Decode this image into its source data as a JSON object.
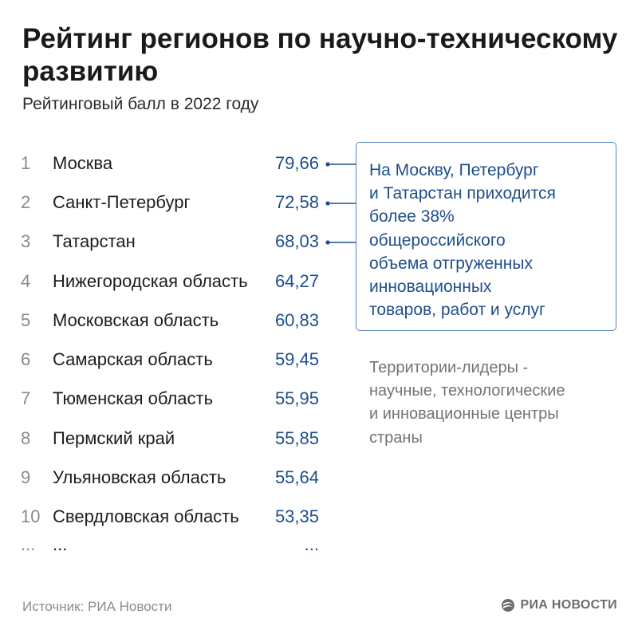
{
  "header": {
    "title": "Рейтинг регионов по научно-техническому развитию",
    "subtitle": "Рейтинговый балл в 2022 году"
  },
  "chart_data": {
    "type": "table",
    "title": "Рейтинг регионов по научно-техническому развитию",
    "subtitle": "Рейтинговый балл в 2022 году",
    "rows": [
      {
        "rank": "1",
        "region": "Москва",
        "value": "79,66"
      },
      {
        "rank": "2",
        "region": "Санкт-Петербург",
        "value": "72,58"
      },
      {
        "rank": "3",
        "region": "Татарстан",
        "value": "68,03"
      },
      {
        "rank": "4",
        "region": "Нижегородская область",
        "value": "64,27"
      },
      {
        "rank": "5",
        "region": "Московская область",
        "value": "60,83"
      },
      {
        "rank": "6",
        "region": "Самарская область",
        "value": "59,45"
      },
      {
        "rank": "7",
        "region": "Тюменская область",
        "value": "55,95"
      },
      {
        "rank": "8",
        "region": "Пермский край",
        "value": "55,85"
      },
      {
        "rank": "9",
        "region": "Ульяновская область",
        "value": "55,64"
      },
      {
        "rank": "10",
        "region": "Свердловская область",
        "value": "53,35"
      },
      {
        "rank": "...",
        "region": "...",
        "value": "..."
      }
    ],
    "annotations": {
      "callout": [
        "На Москву, Петербург",
        "и Татарстан приходится",
        "более 38%",
        "общероссийского",
        "объема отгруженных",
        "инновационных",
        "товаров, работ и услуг"
      ],
      "note": [
        "Территории-лидеры -",
        "научные, технологические",
        "и инновационные центры",
        "страны"
      ]
    }
  },
  "footer": {
    "source": "Источник: РИА Новости",
    "logo_text": "РИА НОВОСТИ"
  },
  "colors": {
    "accent": "#1e4e8c",
    "callout_border": "#5a86bf",
    "rank": "#8a8a8a",
    "note": "#6f7479"
  }
}
